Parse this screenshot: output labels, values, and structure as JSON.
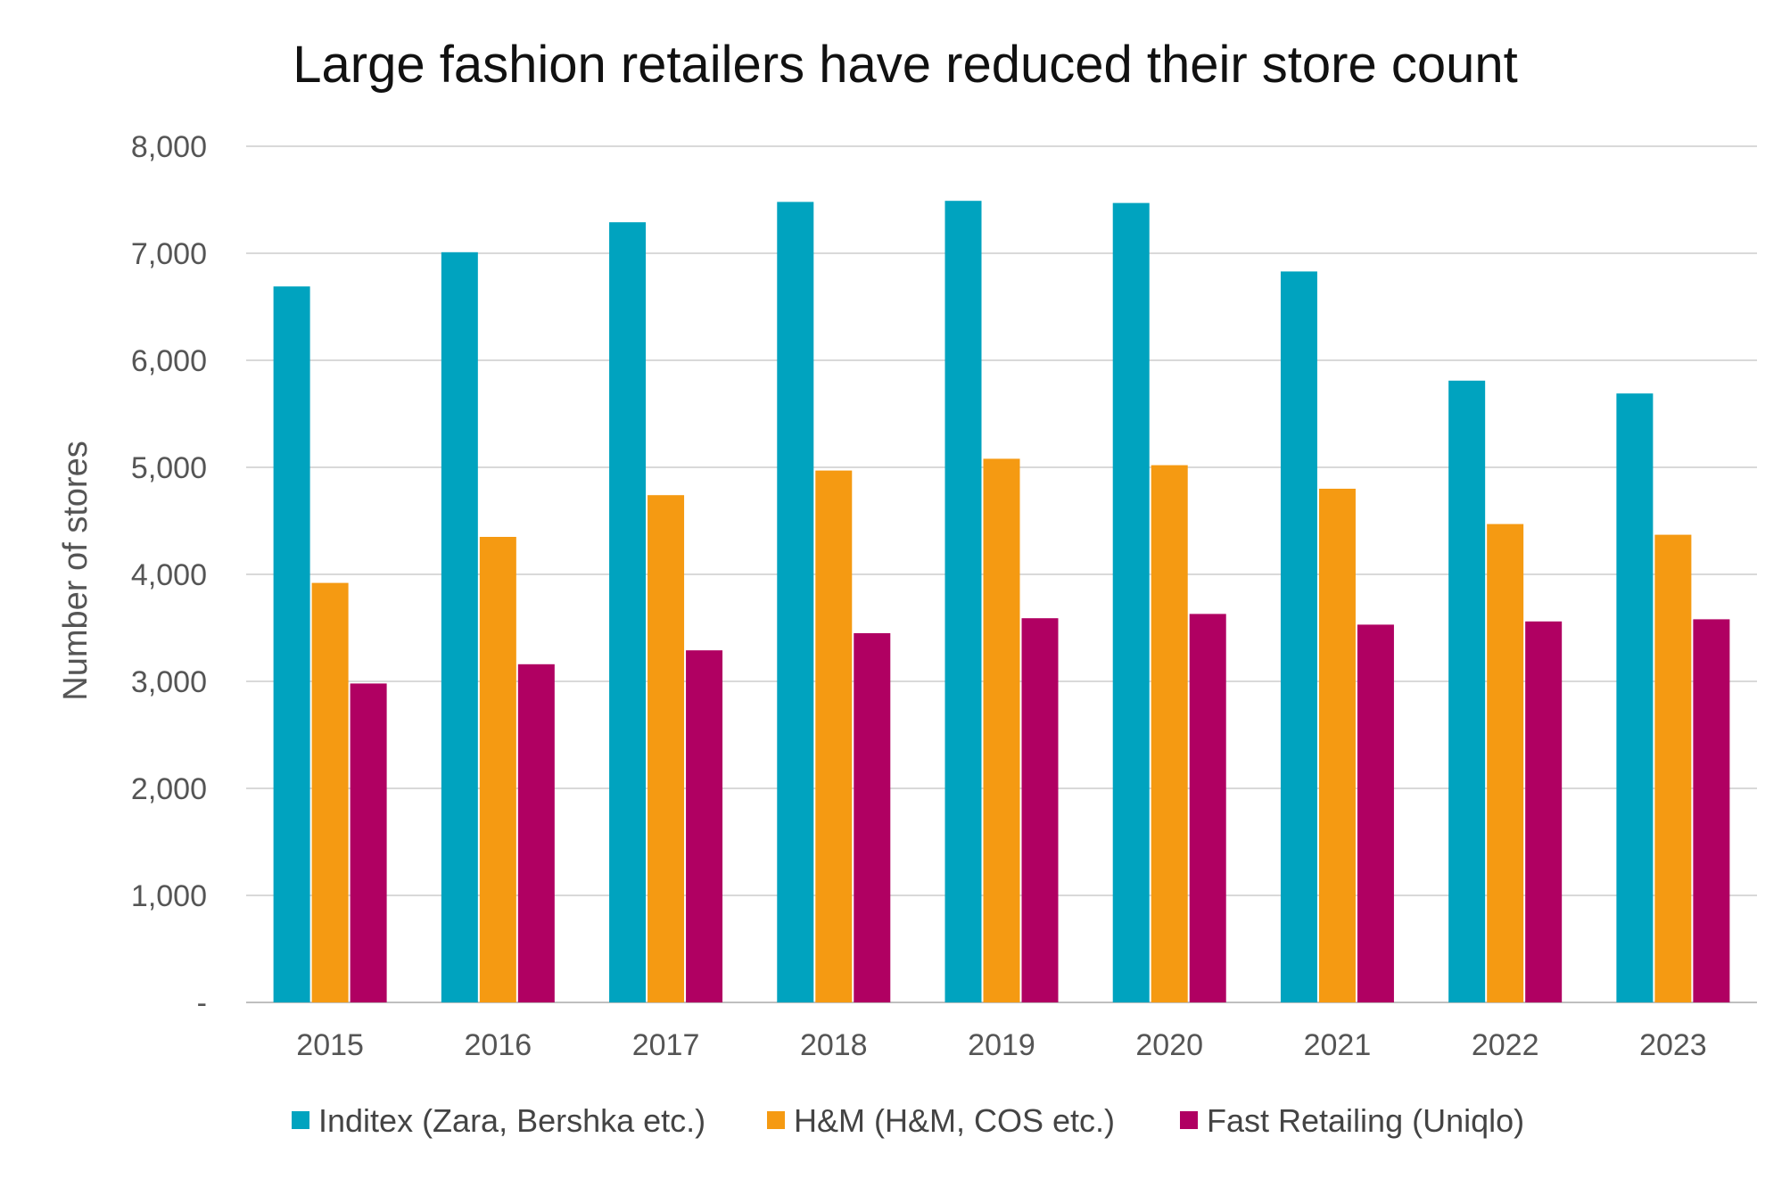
{
  "chart_data": {
    "type": "bar",
    "title": "Large fashion retailers have reduced their store count",
    "ylabel": "Number of stores",
    "xlabel": "",
    "ylim": [
      0,
      8000
    ],
    "yticks": [
      0,
      1000,
      2000,
      3000,
      4000,
      5000,
      6000,
      7000,
      8000
    ],
    "ytick_labels": [
      "-",
      "1,000",
      "2,000",
      "3,000",
      "4,000",
      "5,000",
      "6,000",
      "7,000",
      "8,000"
    ],
    "grid": true,
    "legend_position": "bottom",
    "categories": [
      "2015",
      "2016",
      "2017",
      "2018",
      "2019",
      "2020",
      "2021",
      "2022",
      "2023"
    ],
    "series": [
      {
        "name": "Inditex (Zara, Bershka etc.)",
        "color": "#00a3bf",
        "values": [
          6690,
          7010,
          7290,
          7480,
          7490,
          7470,
          6830,
          5810,
          5690
        ]
      },
      {
        "name": "H&M (H&M, COS etc.)",
        "color": "#f59a12",
        "values": [
          3920,
          4350,
          4740,
          4970,
          5080,
          5020,
          4800,
          4470,
          4370
        ]
      },
      {
        "name": "Fast Retailing (Uniqlo)",
        "color": "#b00062",
        "values": [
          2980,
          3160,
          3290,
          3450,
          3590,
          3630,
          3530,
          3560,
          3580
        ]
      }
    ]
  }
}
